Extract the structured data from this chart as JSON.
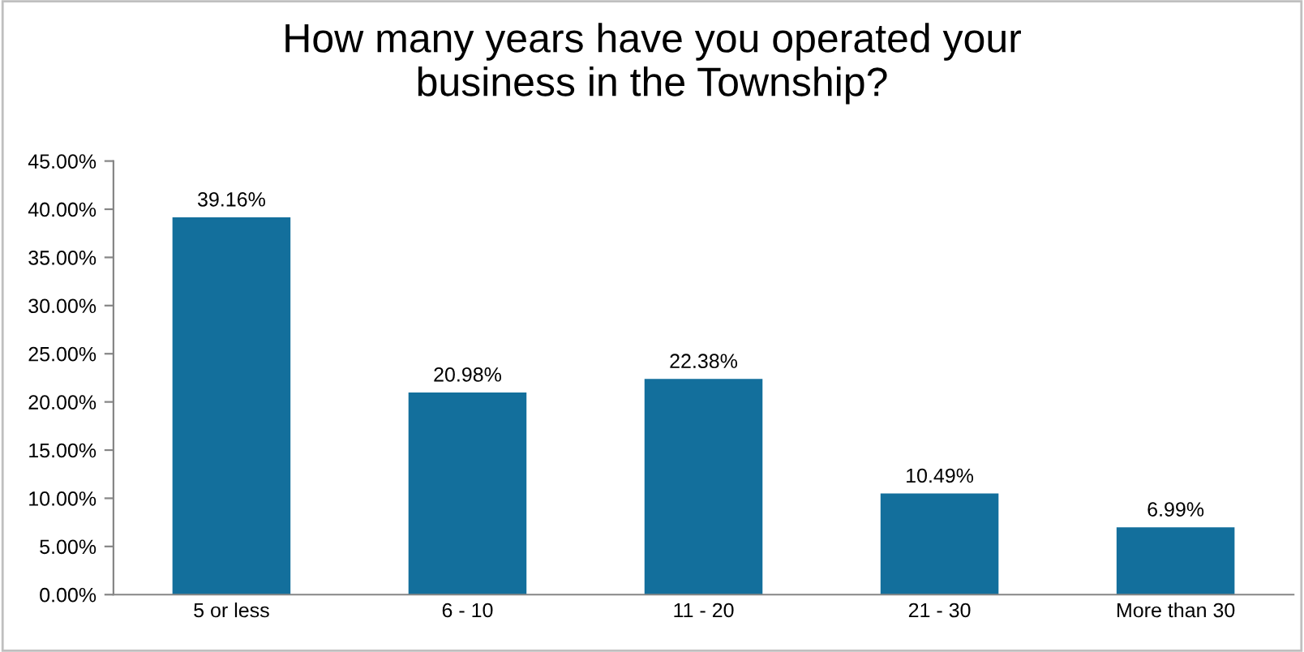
{
  "chart_data": {
    "type": "bar",
    "title": "How many years have you operated your\nbusiness in the Township?",
    "categories": [
      "5 or less",
      "6 - 10",
      "11 - 20",
      "21 - 30",
      "More than 30"
    ],
    "values": [
      39.16,
      20.98,
      22.38,
      10.49,
      6.99
    ],
    "value_labels": [
      "39.16%",
      "20.98%",
      "22.38%",
      "10.49%",
      "6.99%"
    ],
    "color": "#136f9c",
    "ylim": [
      0,
      45
    ],
    "yticks": [
      {
        "value": 0,
        "label": "0.00%"
      },
      {
        "value": 5,
        "label": "5.00%"
      },
      {
        "value": 10,
        "label": "10.00%"
      },
      {
        "value": 15,
        "label": "15.00%"
      },
      {
        "value": 20,
        "label": "20.00%"
      },
      {
        "value": 25,
        "label": "25.00%"
      },
      {
        "value": 30,
        "label": "30.00%"
      },
      {
        "value": 35,
        "label": "35.00%"
      },
      {
        "value": 40,
        "label": "40.00%"
      },
      {
        "value": 45,
        "label": "45.00%"
      }
    ],
    "grid": false,
    "legend": false
  }
}
